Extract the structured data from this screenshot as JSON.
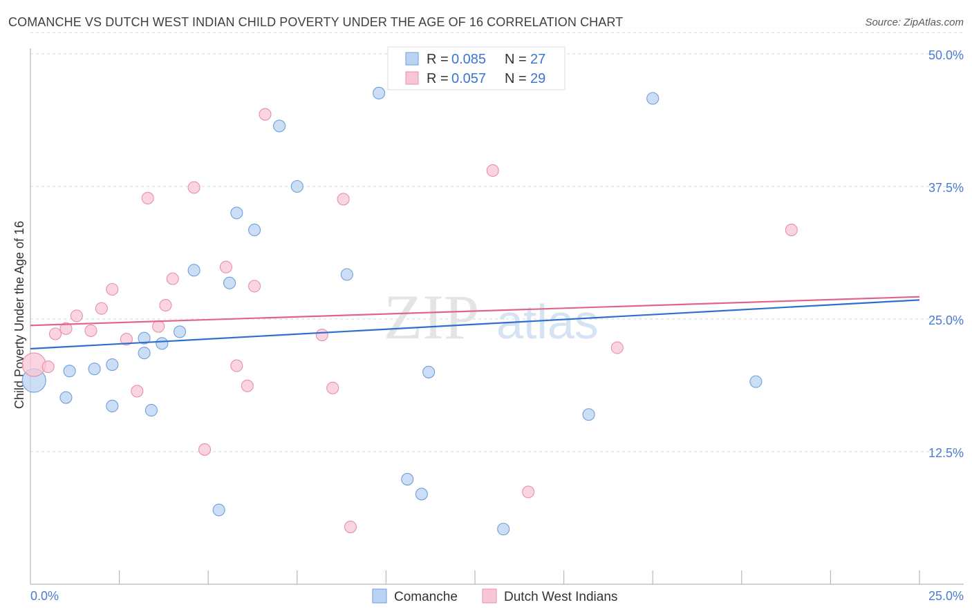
{
  "title": "COMANCHE VS DUTCH WEST INDIAN CHILD POVERTY UNDER THE AGE OF 16 CORRELATION CHART",
  "source": "Source: ZipAtlas.com",
  "watermark": {
    "zip": "ZIP",
    "atlas": "atlas"
  },
  "legend_top": [
    {
      "r_label": "R =",
      "r_value": "0.085",
      "n_label": "N =",
      "n_value": "27"
    },
    {
      "r_label": "R =",
      "r_value": "0.057",
      "n_label": "N =",
      "n_value": "29"
    }
  ],
  "legend_bottom": [
    "Comanche",
    "Dutch West Indians"
  ],
  "colors": {
    "comanche_fill": "#b9d3f3",
    "comanche_stroke": "#6e9fd8",
    "comanche_line": "#2f6fcc",
    "dutch_fill": "#f8c6d4",
    "dutch_stroke": "#e590ab",
    "dutch_line": "#e0648d",
    "tick_text": "#4b7bd0",
    "grid": "#d9d9d9"
  },
  "chart_data": {
    "type": "scatter",
    "title": "COMANCHE VS DUTCH WEST INDIAN CHILD POVERTY UNDER THE AGE OF 16 CORRELATION CHART",
    "xlabel": "",
    "ylabel": "Child Poverty Under the Age of 16",
    "xlim": [
      0,
      25
    ],
    "ylim": [
      0,
      50
    ],
    "x_tick_labels": [
      "0.0%",
      "25.0%"
    ],
    "y_ticks": [
      12.5,
      25.0,
      37.5,
      50.0
    ],
    "y_tick_labels": [
      "12.5%",
      "25.0%",
      "37.5%",
      "50.0%"
    ],
    "grid": true,
    "legend_position": "top-center",
    "series": [
      {
        "name": "Comanche",
        "r": 0.085,
        "n": 27,
        "trend": [
          [
            0,
            22.2
          ],
          [
            25,
            26.8
          ]
        ],
        "points": [
          [
            0.1,
            19.2
          ],
          [
            1.1,
            20.1
          ],
          [
            1.0,
            17.6
          ],
          [
            1.8,
            20.3
          ],
          [
            2.3,
            20.7
          ],
          [
            2.3,
            16.8
          ],
          [
            3.2,
            21.8
          ],
          [
            3.2,
            23.2
          ],
          [
            3.4,
            16.4
          ],
          [
            3.7,
            22.7
          ],
          [
            4.2,
            23.8
          ],
          [
            4.6,
            29.6
          ],
          [
            5.3,
            7.0
          ],
          [
            5.6,
            28.4
          ],
          [
            5.8,
            35.0
          ],
          [
            6.3,
            33.4
          ],
          [
            7.0,
            43.2
          ],
          [
            7.5,
            37.5
          ],
          [
            8.9,
            29.2
          ],
          [
            9.8,
            46.3
          ],
          [
            10.6,
            9.9
          ],
          [
            11.0,
            8.5
          ],
          [
            11.2,
            20.0
          ],
          [
            13.3,
            5.2
          ],
          [
            15.7,
            16.0
          ],
          [
            17.5,
            45.8
          ],
          [
            20.4,
            19.1
          ]
        ]
      },
      {
        "name": "Dutch West Indians",
        "r": 0.057,
        "n": 29,
        "trend": [
          [
            0,
            24.4
          ],
          [
            25,
            27.1
          ]
        ],
        "points": [
          [
            0.1,
            20.7
          ],
          [
            0.5,
            20.5
          ],
          [
            0.7,
            23.6
          ],
          [
            1.0,
            24.1
          ],
          [
            1.3,
            25.3
          ],
          [
            1.7,
            23.9
          ],
          [
            2.0,
            26.0
          ],
          [
            2.3,
            27.8
          ],
          [
            2.7,
            23.1
          ],
          [
            3.0,
            18.2
          ],
          [
            3.3,
            36.4
          ],
          [
            3.6,
            24.3
          ],
          [
            3.8,
            26.3
          ],
          [
            4.0,
            28.8
          ],
          [
            4.6,
            37.4
          ],
          [
            4.9,
            12.7
          ],
          [
            5.5,
            29.9
          ],
          [
            5.8,
            20.6
          ],
          [
            6.1,
            18.7
          ],
          [
            6.3,
            28.1
          ],
          [
            6.6,
            44.3
          ],
          [
            8.2,
            23.5
          ],
          [
            8.5,
            18.5
          ],
          [
            8.8,
            36.3
          ],
          [
            9.0,
            5.4
          ],
          [
            13.0,
            39.0
          ],
          [
            14.0,
            8.7
          ],
          [
            16.5,
            22.3
          ],
          [
            21.4,
            33.4
          ]
        ]
      }
    ]
  }
}
